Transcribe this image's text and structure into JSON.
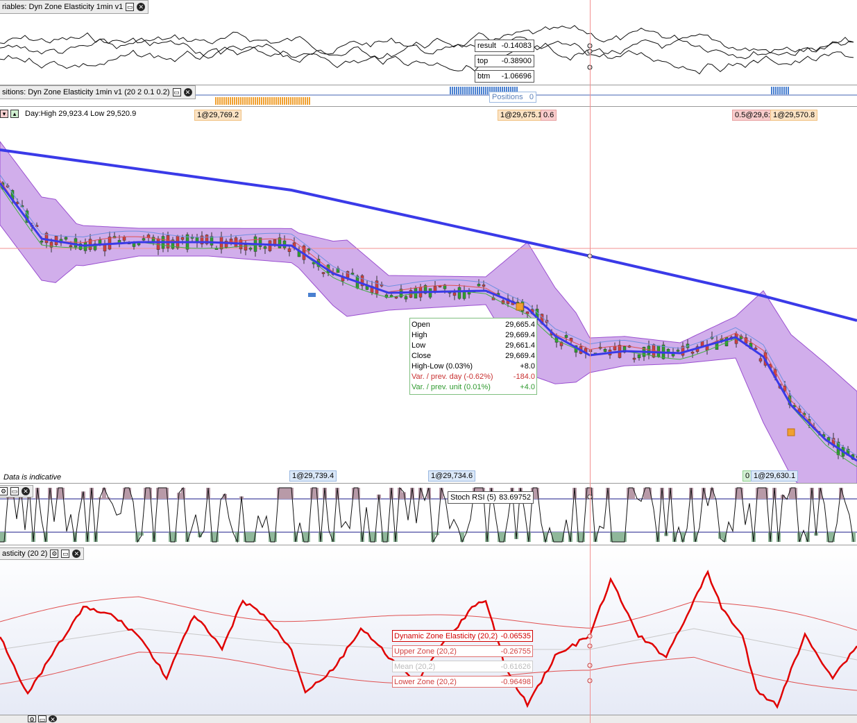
{
  "colors": {
    "bands": "#c9a0e8",
    "bandEdge": "#9a4fd0",
    "mainMA": "#3a3ae8",
    "crosshair": "#f29090",
    "bull": "#2fa030",
    "bear": "#d04040",
    "dze": "#e00000",
    "grid": "#1a1a8a"
  },
  "pane_vars": {
    "title": "riables: Dyn Zone Elasticity  1min v1",
    "values": [
      {
        "label": "result",
        "value": "-0.14083"
      },
      {
        "label": "top",
        "value": "-0.38900"
      },
      {
        "label": "btm",
        "value": "-1.06696"
      }
    ]
  },
  "pane_positions": {
    "title": "sitions: Dyn Zone Elasticity  1min v1 (20 2 0.1 0.2)",
    "positions_label": "Positions",
    "positions_value": "0"
  },
  "price": {
    "day_label": "Day:High 29,923.4 Low 29,520.9",
    "top_tags": [
      "1@29,769.2",
      "1@29,675.1",
      "0.6",
      "0.5@29,6:",
      "1@29,570.8"
    ],
    "bottom_tags": [
      "1@29,739.4",
      "1@29,734.6",
      "0",
      "1@29,630.1"
    ],
    "indicative": "Data is indicative",
    "tooltip": [
      {
        "label": "Open",
        "value": "29,665.4",
        "tone": "normal"
      },
      {
        "label": "High",
        "value": "29,669.4",
        "tone": "normal"
      },
      {
        "label": "Low",
        "value": "29,661.4",
        "tone": "normal"
      },
      {
        "label": "Close",
        "value": "29,669.4",
        "tone": "normal"
      },
      {
        "label": "High-Low (0.03%)",
        "value": "+8.0",
        "tone": "normal"
      },
      {
        "label": "Var. / prev. day (-0.62%)",
        "value": "-184.0",
        "tone": "neg"
      },
      {
        "label": "Var. / prev. unit (0.01%)",
        "value": "+4.0",
        "tone": "pos"
      }
    ]
  },
  "stoch": {
    "label": "Stoch RSI (5)",
    "value": "83.69752"
  },
  "dze": {
    "title": "asticity (20 2)",
    "boxes": [
      {
        "label": "Dynamic Zone Elasticity (20,2)",
        "value": "-0.06535",
        "tone": "main"
      },
      {
        "label": "Upper Zone (20,2)",
        "value": "-0.26755",
        "tone": "zone"
      },
      {
        "label": "Mean (20,2)",
        "value": "-0.61626",
        "tone": "mean"
      },
      {
        "label": "Lower Zone (20,2)",
        "value": "-0.96498",
        "tone": "zone"
      }
    ]
  }
}
